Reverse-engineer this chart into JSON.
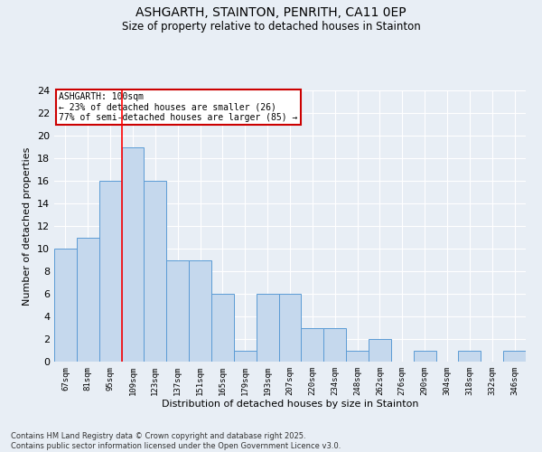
{
  "title_line1": "ASHGARTH, STAINTON, PENRITH, CA11 0EP",
  "title_line2": "Size of property relative to detached houses in Stainton",
  "xlabel": "Distribution of detached houses by size in Stainton",
  "ylabel": "Number of detached properties",
  "categories": [
    "67sqm",
    "81sqm",
    "95sqm",
    "109sqm",
    "123sqm",
    "137sqm",
    "151sqm",
    "165sqm",
    "179sqm",
    "193sqm",
    "207sqm",
    "220sqm",
    "234sqm",
    "248sqm",
    "262sqm",
    "276sqm",
    "290sqm",
    "304sqm",
    "318sqm",
    "332sqm",
    "346sqm"
  ],
  "values": [
    10,
    11,
    16,
    19,
    16,
    9,
    9,
    6,
    1,
    6,
    6,
    3,
    3,
    1,
    2,
    0,
    1,
    0,
    1,
    0,
    1
  ],
  "bar_color": "#c5d8ed",
  "bar_edge_color": "#5b9bd5",
  "redline_x": 2.5,
  "annotation_line1": "ASHGARTH: 100sqm",
  "annotation_line2": "← 23% of detached houses are smaller (26)",
  "annotation_line3": "77% of semi-detached houses are larger (85) →",
  "annotation_box_color": "#ffffff",
  "annotation_box_edge": "#cc0000",
  "ylim": [
    0,
    24
  ],
  "yticks": [
    0,
    2,
    4,
    6,
    8,
    10,
    12,
    14,
    16,
    18,
    20,
    22,
    24
  ],
  "background_color": "#e8eef5",
  "grid_color": "#ffffff",
  "footer_line1": "Contains HM Land Registry data © Crown copyright and database right 2025.",
  "footer_line2": "Contains public sector information licensed under the Open Government Licence v3.0."
}
